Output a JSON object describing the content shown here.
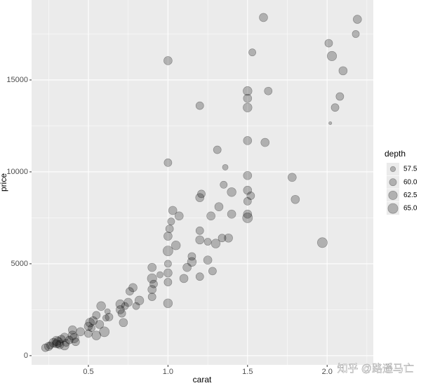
{
  "chart_data": {
    "type": "bubble",
    "x_label": "carat",
    "y_label": "price",
    "x": [
      0.23,
      0.25,
      0.26,
      0.28,
      0.3,
      0.3,
      0.31,
      0.32,
      0.33,
      0.35,
      0.35,
      0.36,
      0.38,
      0.4,
      0.4,
      0.41,
      0.42,
      0.45,
      0.5,
      0.5,
      0.51,
      0.52,
      0.53,
      0.55,
      0.55,
      0.57,
      0.58,
      0.6,
      0.61,
      0.62,
      0.63,
      0.7,
      0.7,
      0.71,
      0.72,
      0.73,
      0.75,
      0.76,
      0.78,
      0.8,
      0.82,
      0.9,
      0.9,
      0.9,
      0.9,
      0.91,
      0.95,
      1.0,
      1.0,
      1.0,
      1.0,
      1.0,
      1.0,
      1.01,
      1.02,
      1.03,
      1.05,
      1.07,
      1.0,
      1.0,
      1.1,
      1.12,
      1.15,
      1.15,
      1.2,
      1.2,
      1.2,
      1.2,
      1.21,
      1.2,
      1.25,
      1.25,
      1.27,
      1.28,
      1.3,
      1.31,
      1.32,
      1.34,
      1.35,
      1.36,
      1.38,
      1.4,
      1.4,
      1.5,
      1.5,
      1.5,
      1.5,
      1.5,
      1.5,
      1.5,
      1.5,
      1.5,
      1.52,
      1.53,
      1.6,
      1.61,
      1.63,
      1.78,
      1.8,
      1.97,
      2.01,
      2.02,
      2.03,
      2.05,
      2.08,
      2.1,
      2.18,
      2.19
    ],
    "values": [
      430,
      500,
      560,
      700,
      650,
      800,
      720,
      600,
      900,
      550,
      1000,
      700,
      850,
      1100,
      1400,
      950,
      750,
      1300,
      1200,
      1600,
      1800,
      1500,
      1900,
      1100,
      2200,
      1700,
      2700,
      1300,
      2050,
      2400,
      2100,
      2500,
      2800,
      2300,
      1800,
      2700,
      2900,
      3500,
      3700,
      2700,
      3000,
      3200,
      3600,
      4200,
      4800,
      3900,
      4400,
      2850,
      4000,
      4500,
      5000,
      5700,
      6500,
      6900,
      7300,
      7900,
      6000,
      7600,
      10500,
      16050,
      4200,
      4800,
      5400,
      5100,
      4300,
      6300,
      6800,
      8600,
      8800,
      13600,
      5200,
      6200,
      7600,
      4600,
      6100,
      11200,
      8100,
      6400,
      9300,
      10250,
      6400,
      8900,
      7700,
      7500,
      7700,
      8400,
      9000,
      9800,
      11700,
      13500,
      14000,
      14400,
      8700,
      16500,
      18400,
      11600,
      14400,
      9700,
      8500,
      6150,
      17000,
      12650,
      16300,
      13500,
      14100,
      15500,
      17500,
      18300
    ],
    "sizes": [
      61,
      62,
      60,
      63,
      62,
      64,
      65,
      62,
      61,
      63,
      62,
      60,
      61,
      63,
      62,
      64,
      61,
      62,
      61,
      62,
      63,
      60,
      62,
      63,
      61,
      62,
      63,
      65,
      59,
      58,
      61,
      62,
      63,
      61,
      62,
      60,
      62,
      61,
      62,
      60,
      63,
      61,
      62,
      64,
      62,
      61,
      59,
      63,
      61,
      62,
      60,
      65,
      62,
      61,
      60,
      62,
      63,
      62,
      61,
      62,
      62,
      62,
      61,
      63,
      61,
      62,
      61,
      62,
      61,
      61,
      62,
      60,
      62,
      61,
      63,
      61,
      62,
      61,
      60,
      58,
      62,
      63,
      62,
      65,
      62,
      61,
      62,
      62,
      62,
      63,
      62,
      63,
      61,
      60,
      62,
      62,
      61,
      62,
      62,
      65,
      61,
      55.5,
      64,
      61,
      61,
      62,
      60,
      62
    ],
    "size_title": "depth",
    "size_legend": [
      57.5,
      {
        "value": 60,
        "label": "60.0"
      },
      62.5,
      {
        "value": 65,
        "label": "65.0"
      }
    ],
    "sizelim": [
      55,
      67
    ],
    "color": "#000000",
    "xlim": [
      0.143,
      2.29
    ],
    "xticks": [
      0.5,
      {
        "value": 1,
        "label": "1.0"
      },
      1.5,
      {
        "value": 2,
        "label": "2.0"
      }
    ],
    "ylim": [
      -500,
      19351
    ],
    "yticks": [
      0,
      5000,
      10000,
      15000
    ],
    "minor_xticks": [
      0.25,
      0.75,
      1.25,
      1.75,
      2.25
    ],
    "minor_yticks": [
      2500,
      7500,
      12500,
      17500
    ],
    "grid": true
  },
  "watermark": "知乎 @路遥马亡"
}
